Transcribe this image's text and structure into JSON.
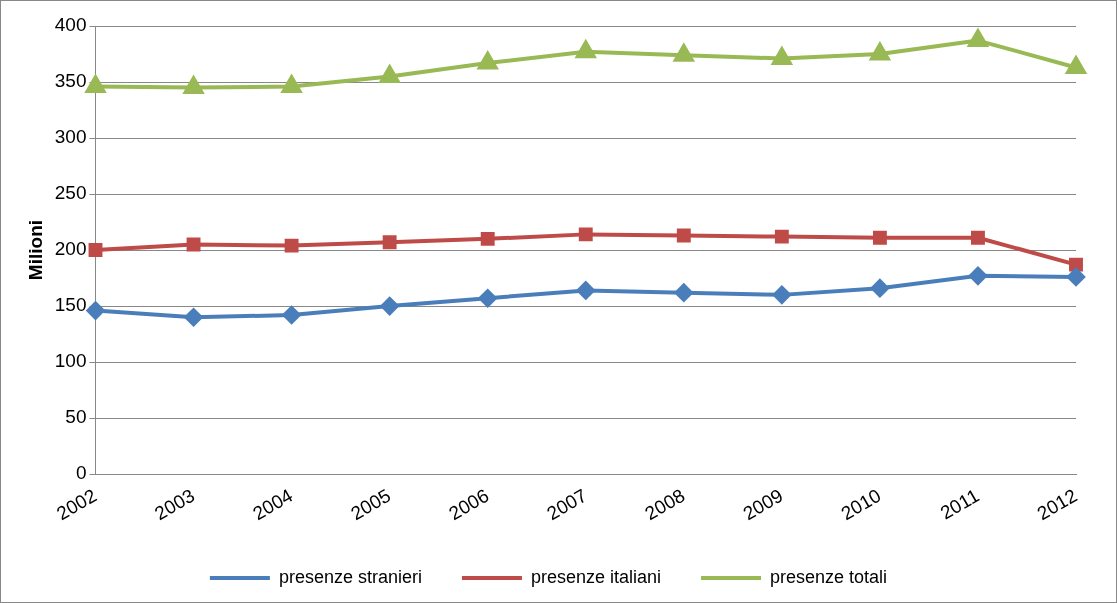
{
  "chart_data": {
    "type": "line",
    "ylabel": "Milioni",
    "categories": [
      "2002",
      "2003",
      "2004",
      "2005",
      "2006",
      "2007",
      "2008",
      "2009",
      "2010",
      "2011",
      "2012"
    ],
    "series": [
      {
        "name": "presenze stranieri",
        "color": "#4a7ebb",
        "marker": "diamond",
        "values": [
          146,
          140,
          142,
          150,
          157,
          164,
          162,
          160,
          166,
          177,
          176
        ]
      },
      {
        "name": "presenze italiani",
        "color": "#be4b48",
        "marker": "square",
        "values": [
          200,
          205,
          204,
          207,
          210,
          214,
          213,
          212,
          211,
          211,
          187
        ]
      },
      {
        "name": "presenze totali",
        "color": "#98b954",
        "marker": "triangle",
        "values": [
          346,
          345,
          346,
          355,
          367,
          377,
          374,
          371,
          375,
          387,
          363
        ]
      }
    ],
    "ylim": [
      0,
      400
    ],
    "yticks": [
      0,
      50,
      100,
      150,
      200,
      250,
      300,
      350,
      400
    ],
    "grid": "y",
    "legend": "bottom"
  }
}
